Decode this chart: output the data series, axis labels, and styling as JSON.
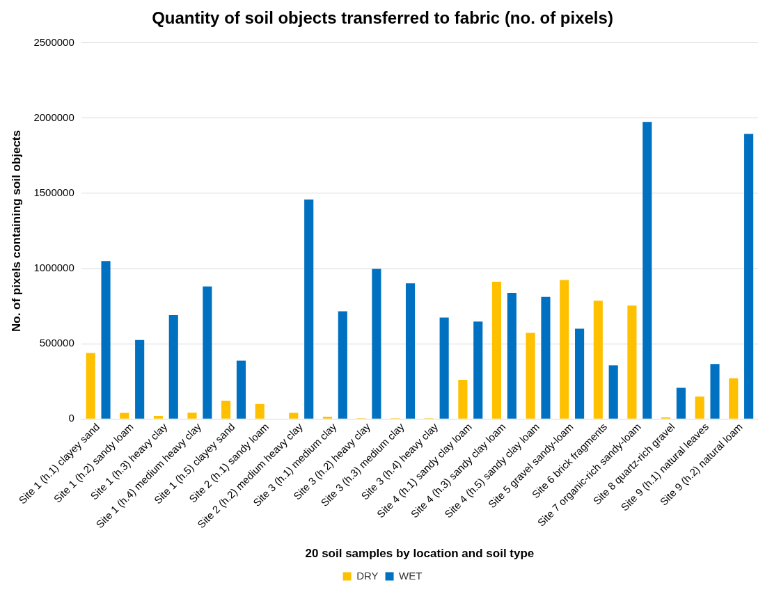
{
  "chart_data": {
    "type": "bar",
    "title": "Quantity of soil objects transferred to fabric (no. of pixels)",
    "xlabel": "20 soil samples by location and soil type",
    "ylabel": "No. of pixels containing soil objects",
    "categories": [
      "Site 1 (h.1) clayey sand",
      "Site 1 (h.2) sandy loam",
      "Site 1 (h.3) heavy clay",
      "Site 1 (h.4) medium heavy clay",
      "Site 1 (h.5) clayey sand",
      "Site 2 (h.1) sandy loam",
      "Site 2 (h.2) medium heavy clay",
      "Site 3 (h.1) medium clay",
      "Site 3 (h.2) heavy clay",
      "Site 3 (h.3) medium clay",
      "Site 3 (h.4) heavy clay",
      "Site 4 (h.1) sandy clay loam",
      "Site 4 (h.3) sandy clay loam",
      "Site 4 (h.5) sandy clay loam",
      "Site 5 gravel sandy-loam",
      "Site 6 brick fragments",
      "Site 7 organic-rich sandy-loam",
      "Site 8 quartz-rich gravel",
      "Site 9 (h.1) natural leaves",
      "Site 9 (h.2) natural loam"
    ],
    "series": [
      {
        "name": "DRY",
        "color": "#ffc000",
        "values": [
          440000,
          40000,
          20000,
          42000,
          122000,
          100000,
          40000,
          15000,
          5000,
          5000,
          5000,
          260000,
          913000,
          573000,
          924000,
          786000,
          754000,
          10000,
          149000,
          271000
        ]
      },
      {
        "name": "WET",
        "color": "#0070c0",
        "values": [
          1050000,
          525000,
          690000,
          881000,
          387000,
          0,
          1460000,
          716000,
          998000,
          902000,
          674000,
          648000,
          839000,
          812000,
          600000,
          356000,
          1975000,
          207000,
          366000,
          1895000
        ]
      }
    ],
    "ylim": [
      0,
      2500000
    ],
    "yticks": [
      0,
      500000,
      1000000,
      1500000,
      2000000,
      2500000
    ],
    "grid": "y",
    "legend": "bottom"
  }
}
